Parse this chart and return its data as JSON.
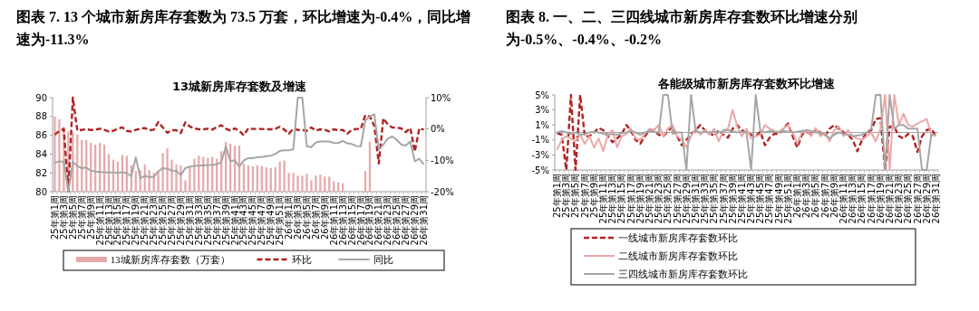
{
  "chart_data": [
    {
      "type": "bar",
      "title": "图表 7. 13 个城市新房库存套数为 73.5 万套，环比增速为-0.4%，同比增速为-11.3%",
      "subtitle": "13城新房库存套数及增速",
      "categories": [
        "25年第1周",
        null,
        "25年第3周",
        null,
        "25年第5周",
        null,
        "25年第7周",
        null,
        "25年第9周",
        null,
        "25年第11周",
        null,
        "25年第13周",
        null,
        "25年第15周",
        null,
        "25年第17周",
        null,
        "25年第19周",
        null,
        "25年第21周",
        null,
        "25年第23周",
        null,
        "25年第25周",
        null,
        "25年第27周",
        null,
        "25年第29周",
        null,
        "25年第31周",
        null,
        "25年第33周",
        null,
        "25年第35周",
        null,
        "25年第37周",
        null,
        "25年第39周",
        null,
        "25年第41周",
        null,
        "25年第43周",
        null,
        "25年第45周",
        null,
        "25年第47周",
        null,
        "25年第49周",
        null,
        "25年第51周",
        null,
        "26年第1周",
        null,
        "26年第3周",
        null,
        "26年第5周",
        null,
        "26年第7周",
        null,
        "26年第9周",
        null,
        "26年第11周",
        null,
        "26年第13周",
        null,
        "26年第15周",
        null,
        "26年第17周",
        null,
        "26年第19周",
        null,
        "26年第21周",
        null,
        "26年第23周",
        null,
        "26年第25周",
        null,
        "26年第27周",
        null,
        "26年第29周",
        null,
        "26年第31周"
      ],
      "ylim": [
        80,
        90
      ],
      "yticks": [
        80,
        82,
        84,
        86,
        88,
        90
      ],
      "y2lim": [
        -20,
        10
      ],
      "y2ticks": [
        {
          "value": 10,
          "label": "10%"
        },
        {
          "value": 0,
          "label": "0%"
        },
        {
          "value": -10,
          "label": "-10%"
        },
        {
          "value": -20,
          "label": "-20%"
        }
      ],
      "legend": "bottom",
      "series": [
        {
          "name": "13城新房库存套数（万套）",
          "type": "bar",
          "color": "#e6a9a9",
          "values": [
            88.0,
            87.7,
            86.9,
            86.4,
            86.3,
            86.1,
            85.5,
            85.5,
            85.2,
            85.0,
            85.2,
            85.0,
            84.0,
            83.4,
            83.2,
            83.9,
            83.8,
            82.8,
            82.2,
            82.3,
            82.9,
            82.3,
            82.0,
            82.2,
            84.1,
            84.6,
            83.4,
            82.9,
            82.8,
            81.2,
            82.7,
            83.5,
            83.8,
            83.7,
            83.6,
            83.7,
            83.5,
            84.3,
            85.3,
            85.1,
            84.9,
            84.9,
            83.0,
            82.8,
            82.7,
            82.8,
            82.7,
            82.6,
            82.5,
            82.6,
            83.2,
            83.3,
            82.0,
            82.0,
            81.7,
            81.7,
            81.9,
            81.2,
            81.7,
            81.8,
            81.6,
            81.6,
            81.1,
            81.0,
            80.9,
            null,
            null,
            null,
            null,
            82.2,
            85.3,
            null,
            null,
            null,
            null,
            null,
            null,
            null,
            null,
            null,
            null,
            null,
            null
          ]
        },
        {
          "name": "环比",
          "type": "line",
          "axis": "y2",
          "line_style": "dashed",
          "color": "#b22222",
          "values": [
            -1.8,
            -0.6,
            0,
            -20,
            10,
            -0.5,
            -0.3,
            -0.1,
            -0.3,
            -0.2,
            0.1,
            -0.3,
            -0.8,
            -0.6,
            0.1,
            0.5,
            -0.6,
            -0.8,
            -0.3,
            0.1,
            0.3,
            -0.4,
            -0.2,
            2.2,
            0.5,
            -1.2,
            -0.4,
            -0.4,
            -1.3,
            2.1,
            0.8,
            0.2,
            -0.1,
            -0.1,
            0.1,
            -0.2,
            0.6,
            1.2,
            0.1,
            -0.5,
            0.2,
            -0.6,
            -2.0,
            0.2,
            0,
            0,
            0,
            -0.1,
            -0.1,
            0.1,
            0.7,
            -0.2,
            -1.5,
            0.1,
            -0.3,
            -0.3,
            -0.6,
            0.5,
            -0.5,
            -0.1,
            -0.3,
            -0.8,
            -0.1,
            -0.4,
            -0.3,
            -1.5,
            -0.3,
            0,
            0,
            4.4,
            4.0,
            1.0,
            -11.0,
            3.4,
            1.5,
            0.5,
            0.4,
            0.2,
            -1.0,
            0.3,
            -7.2,
            0.2,
            -0.2
          ]
        },
        {
          "name": "同比",
          "type": "line",
          "axis": "y2",
          "line_style": "solid",
          "color": "#a6a6a6",
          "values": [
            -10.8,
            -10.3,
            -10.5,
            -20,
            -10.5,
            -11.8,
            -12.5,
            -12.3,
            -13.3,
            -13.6,
            -13.7,
            -13.8,
            -13.9,
            -13.9,
            -14.0,
            -13.8,
            -14.1,
            -15.1,
            -9.0,
            -15.7,
            -15.0,
            -15.3,
            -15.3,
            -13.5,
            -12.5,
            -12.7,
            -13.3,
            -13.4,
            -14.7,
            -12.5,
            -12.0,
            -11.8,
            -11.7,
            -11.6,
            -11.5,
            -11.5,
            -11.3,
            -10.6,
            -5.5,
            -10.3,
            -10.0,
            -12.0,
            -10.0,
            -9.3,
            -9.3,
            -9.0,
            -9.0,
            -8.7,
            -8.5,
            -8.0,
            -7.0,
            -6.8,
            -6.8,
            -6.5,
            10,
            10,
            -5.5,
            -5.8,
            -4.3,
            -4.0,
            -4.0,
            -4.0,
            -4.5,
            -4.5,
            -3.8,
            -4.6,
            -4.8,
            -5.4,
            -5.5,
            2.7,
            4.0,
            4.7,
            -6.5,
            -5.0,
            -3.0,
            -2.4,
            -3.5,
            -5.0,
            -5.3,
            -4.0,
            -10.3,
            -9.5,
            -11.3
          ]
        }
      ]
    },
    {
      "type": "line",
      "title": "图表 8. 一、二、三四线城市新房库存套数环比增速分别为-0.5%、-0.4%、-0.2%",
      "subtitle": "各能级城市新房库存套数环比增速",
      "categories": [
        "25年第1周",
        null,
        "25年第3周",
        null,
        "25年第5周",
        null,
        "25年第7周",
        null,
        "25年第9周",
        null,
        "25年第11周",
        null,
        "25年第13周",
        null,
        "25年第15周",
        null,
        "25年第17周",
        null,
        "25年第19周",
        null,
        "25年第21周",
        null,
        "25年第23周",
        null,
        "25年第25周",
        null,
        "25年第27周",
        null,
        "25年第29周",
        null,
        "25年第31周",
        null,
        "25年第33周",
        null,
        "25年第35周",
        null,
        "25年第37周",
        null,
        "25年第39周",
        null,
        "25年第41周",
        null,
        "25年第43周",
        null,
        "25年第45周",
        null,
        "25年第47周",
        null,
        "25年第49周",
        null,
        "25年第51周",
        null,
        "26年第1周",
        null,
        "26年第3周",
        null,
        "26年第5周",
        null,
        "26年第7周",
        null,
        "26年第9周",
        null,
        "26年第11周",
        null,
        "26年第13周",
        null,
        "26年第15周",
        null,
        "26年第17周",
        null,
        "26年第19周",
        null,
        "26年第21周",
        null,
        "26年第23周",
        null,
        "26年第25周",
        null,
        "26年第27周",
        null,
        "26年第29周",
        null,
        "26年第31周"
      ],
      "ylim": [
        -5,
        5
      ],
      "yticks": [
        {
          "value": 5,
          "label": "5%"
        },
        {
          "value": 3,
          "label": "3%"
        },
        {
          "value": 1,
          "label": "1%"
        },
        {
          "value": -1,
          "label": "-1%"
        },
        {
          "value": -3,
          "label": "-3%"
        },
        {
          "value": -5,
          "label": "-5%"
        }
      ],
      "ref_lines": [
        {
          "axis": "y",
          "value": 0,
          "color": "#a6a6a6"
        }
      ],
      "legend": "bottom",
      "series": [
        {
          "name": "一线城市新房库存套数环比",
          "line_style": "dashed",
          "color": "#b22222",
          "values": [
            -0.1,
            -0.3,
            -5,
            5,
            -5,
            5,
            -0.5,
            -0.5,
            0,
            0.6,
            0.3,
            -0.5,
            -1.3,
            -0.8,
            -0.2,
            1.0,
            0.2,
            -1.0,
            -1.5,
            -0.5,
            0.3,
            0.3,
            -0.3,
            -0.5,
            0.2,
            0.8,
            -0.5,
            -1.7,
            -1.0,
            -0.2,
            0.3,
            1.0,
            0.3,
            0,
            -0.5,
            0.3,
            -0.3,
            -0.7,
            0.5,
            1.0,
            0.3,
            0,
            -0.3,
            -0.5,
            0.1,
            -1.7,
            -0.7,
            -0.2,
            -0.2,
            0.5,
            1.2,
            -0.5,
            -2.0,
            -0.3,
            0.1,
            -0.3,
            0.4,
            0,
            -0.5,
            0.5,
            1.0,
            0.5,
            0,
            -0.3,
            -1.0,
            -2.5,
            -1.0,
            0,
            0.3,
            1.8,
            1.9,
            -5,
            0.8,
            0.7,
            -0.5,
            -0.8,
            -0.2,
            -0.5,
            -2.6,
            -0.5,
            0.3,
            0.5,
            -0.5
          ]
        },
        {
          "name": "二线城市新房库存套数环比",
          "line_style": "solid",
          "color": "#eba8a8",
          "values": [
            -2.3,
            -1.0,
            -0.5,
            -0.8,
            -1.2,
            -0.3,
            -1.5,
            -0.5,
            -2.0,
            -0.8,
            -2.5,
            -0.3,
            0.3,
            -2.0,
            -0.5,
            -0.2,
            0.5,
            -0.8,
            -1.0,
            -0.2,
            0.5,
            0.3,
            1.0,
            -0.5,
            0.5,
            1.0,
            -0.5,
            -1.0,
            -2.0,
            -0.5,
            0.5,
            -0.3,
            0.3,
            -0.3,
            0.5,
            -1.2,
            0.3,
            0.5,
            3.0,
            0.8,
            -0.5,
            0.5,
            -0.8,
            -0.5,
            -0.3,
            1.0,
            0.5,
            0.2,
            0,
            0.5,
            1.0,
            0,
            -1.5,
            0,
            0.2,
            -0.5,
            0.6,
            -0.5,
            0,
            -1.2,
            0.3,
            0.8,
            -0.5,
            0.3,
            -0.5,
            -0.8,
            -1.0,
            -0.5,
            0,
            -1.2,
            0.5,
            5,
            -5,
            5,
            1.0,
            2.5,
            1.0,
            0.8,
            1.2,
            1.5,
            1.8,
            -0.3,
            -0.5
          ]
        },
        {
          "name": "三四线城市新房库存套数环比",
          "line_style": "solid",
          "color": "#a6a6a6",
          "values": [
            0,
            0.2,
            0,
            -0.2,
            0,
            -0.3,
            -0.2,
            0,
            0.1,
            0,
            -0.2,
            -0.3,
            -0.2,
            -0.3,
            -0.1,
            0,
            0.2,
            0,
            -0.3,
            0,
            0.2,
            0.1,
            0,
            5,
            5,
            -0.2,
            0,
            0,
            -5,
            5,
            0.2,
            0,
            0.1,
            0,
            0.1,
            0,
            0.2,
            0.3,
            0.2,
            0,
            0.1,
            0,
            -5,
            5,
            0.2,
            0,
            0.2,
            0.1,
            0.1,
            0.2,
            0.1,
            0,
            0.1,
            0.2,
            0.3,
            0.2,
            0,
            0,
            -0.3,
            -0.8,
            -0.3,
            0,
            -0.2,
            -0.3,
            -0.5,
            -0.4,
            -0.3,
            0,
            0.5,
            5,
            5,
            -5,
            5,
            0.5,
            1.0,
            1.0,
            0.5,
            0.5,
            0.5,
            -5,
            -5,
            -0.3,
            -0.3
          ]
        }
      ]
    }
  ]
}
